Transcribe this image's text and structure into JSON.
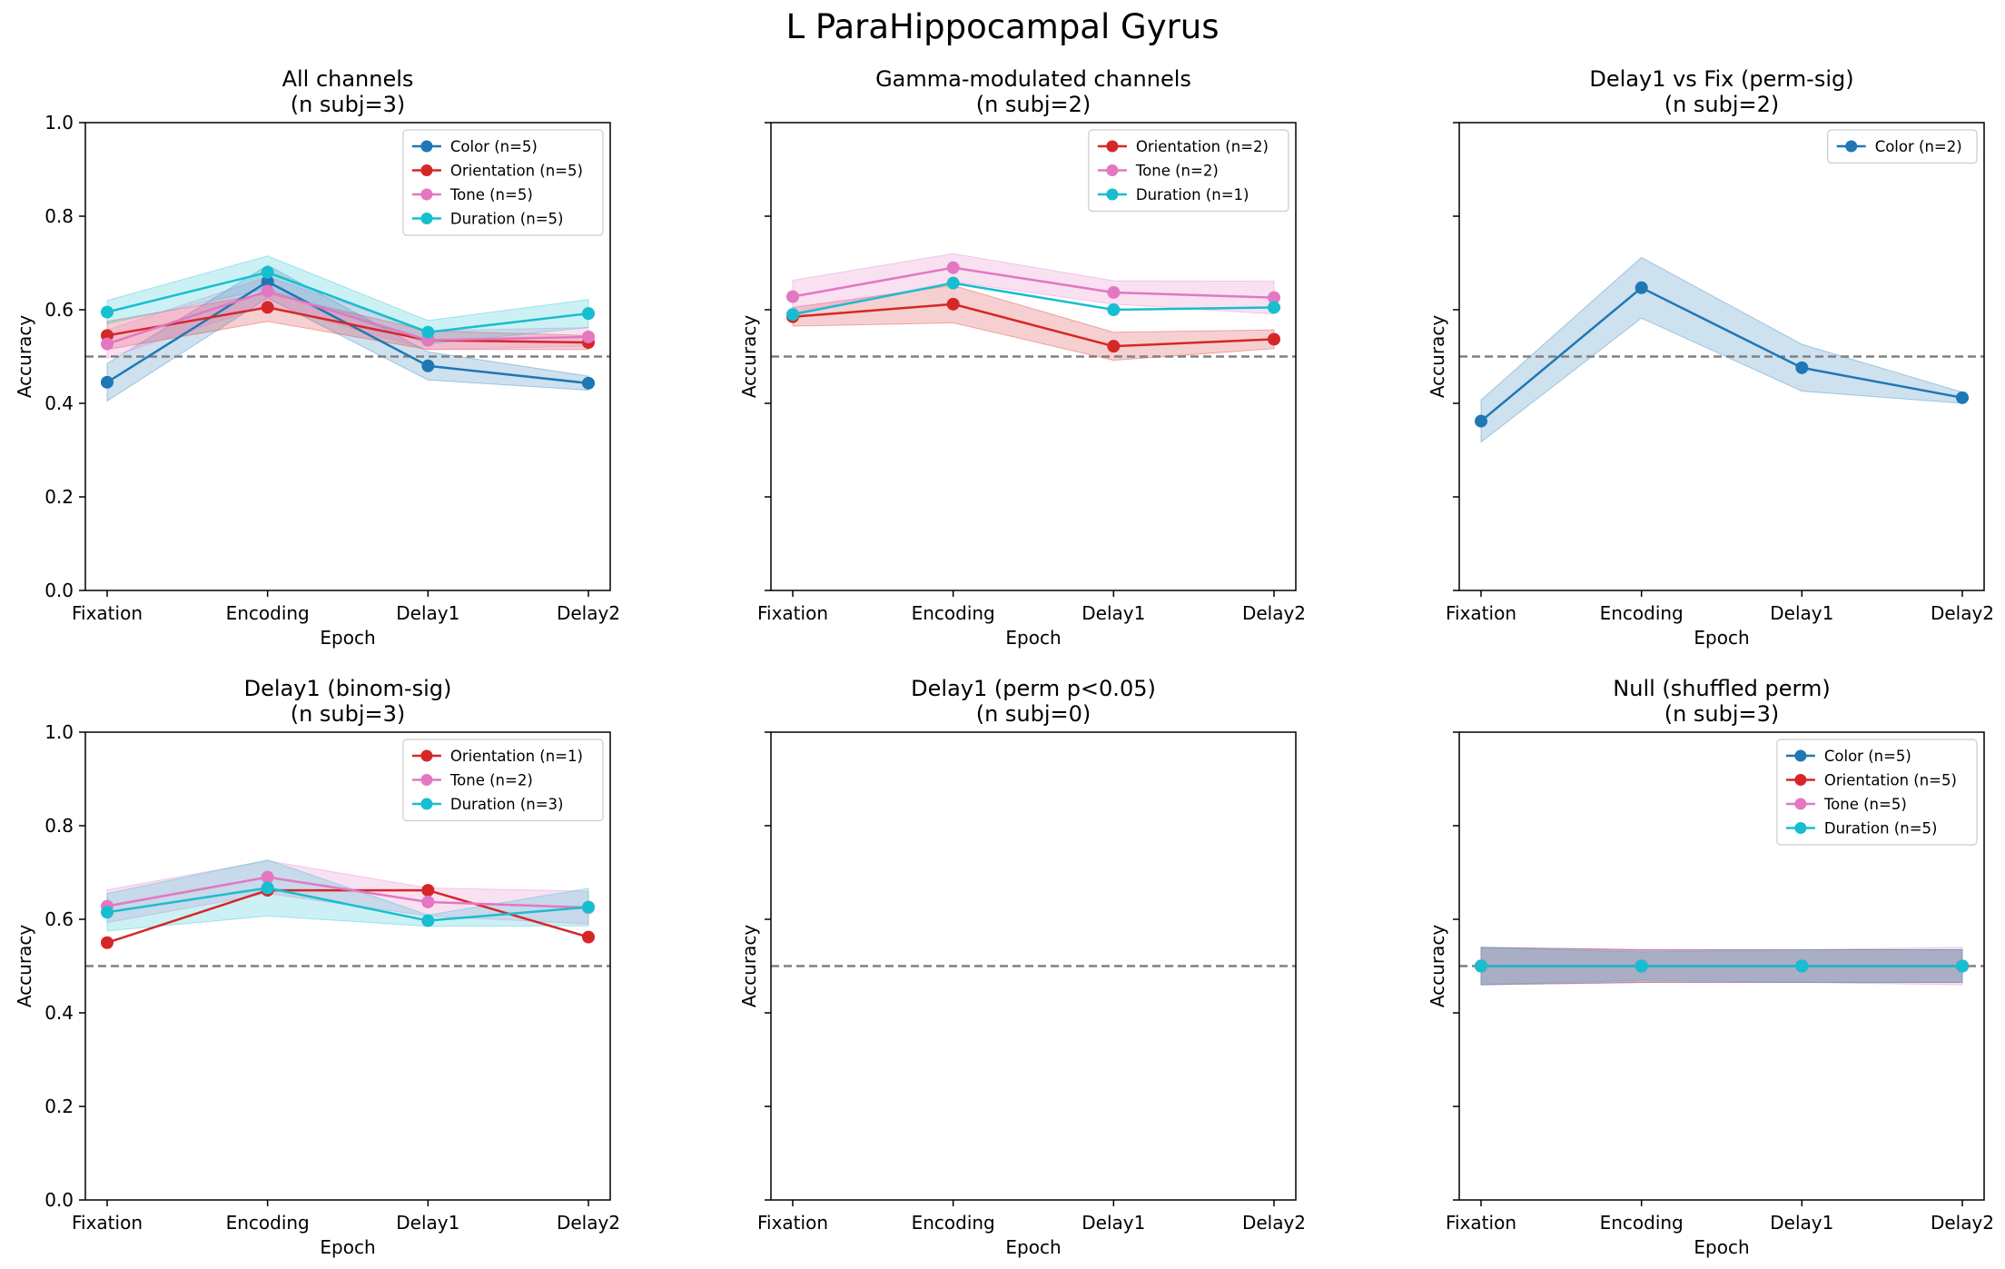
{
  "suptitle": "L ParaHippocampal Gyrus",
  "epochs": [
    "Fixation",
    "Encoding",
    "Delay1",
    "Delay2"
  ],
  "xlabel": "Epoch",
  "ylabel": "Accuracy",
  "yticks": [
    "0.0",
    "0.2",
    "0.4",
    "0.6",
    "0.8",
    "1.0"
  ],
  "colors": {
    "Color": "#1f77b4",
    "Orientation": "#d62728",
    "Tone": "#e377c2",
    "Duration": "#17becf",
    "chance": "#808080"
  },
  "chart_data": [
    {
      "type": "line",
      "title": "All channels",
      "subtitle": "(n subj=3)",
      "ylim": [
        0,
        1
      ],
      "chance": 0.5,
      "show_yticklabels": true,
      "legend": "top-right",
      "series": [
        {
          "name": "Color (n=5)",
          "feature": "Color",
          "values": [
            0.445,
            0.66,
            0.48,
            0.443
          ],
          "err": [
            0.04,
            0.035,
            0.03,
            0.015
          ]
        },
        {
          "name": "Orientation (n=5)",
          "feature": "Orientation",
          "values": [
            0.545,
            0.605,
            0.535,
            0.53
          ],
          "err": [
            0.03,
            0.03,
            0.02,
            0.015
          ]
        },
        {
          "name": "Tone (n=5)",
          "feature": "Tone",
          "values": [
            0.527,
            0.64,
            0.535,
            0.542
          ],
          "err": [
            0.03,
            0.03,
            0.02,
            0.02
          ]
        },
        {
          "name": "Duration (n=5)",
          "feature": "Duration",
          "values": [
            0.595,
            0.68,
            0.552,
            0.592
          ],
          "err": [
            0.025,
            0.035,
            0.025,
            0.03
          ]
        }
      ]
    },
    {
      "type": "line",
      "title": "Gamma-modulated channels",
      "subtitle": "(n subj=2)",
      "ylim": [
        0,
        1
      ],
      "chance": 0.5,
      "show_yticklabels": false,
      "legend": "top-right",
      "series": [
        {
          "name": "Orientation (n=2)",
          "feature": "Orientation",
          "values": [
            0.585,
            0.612,
            0.522,
            0.537
          ],
          "err": [
            0.02,
            0.04,
            0.03,
            0.02
          ]
        },
        {
          "name": "Tone (n=2)",
          "feature": "Tone",
          "values": [
            0.628,
            0.69,
            0.637,
            0.626
          ],
          "err": [
            0.035,
            0.03,
            0.025,
            0.035
          ]
        },
        {
          "name": "Duration (n=1)",
          "feature": "Duration",
          "values": [
            0.59,
            0.657,
            0.6,
            0.605
          ],
          "err": [
            0,
            0,
            0,
            0
          ]
        }
      ]
    },
    {
      "type": "line",
      "title": "Delay1 vs Fix (perm-sig)",
      "subtitle": "(n subj=2)",
      "ylim": [
        0,
        1
      ],
      "chance": 0.5,
      "show_yticklabels": false,
      "legend": "top-right",
      "series": [
        {
          "name": "Color (n=2)",
          "feature": "Color",
          "values": [
            0.362,
            0.647,
            0.476,
            0.412
          ],
          "err": [
            0.045,
            0.065,
            0.05,
            0.012
          ]
        }
      ]
    },
    {
      "type": "line",
      "title": "Delay1 (binom-sig)",
      "subtitle": "(n subj=3)",
      "ylim": [
        0,
        1
      ],
      "chance": 0.5,
      "show_yticklabels": true,
      "legend": "top-right",
      "series": [
        {
          "name": "Orientation (n=1)",
          "feature": "Orientation",
          "values": [
            0.55,
            0.662,
            0.662,
            0.562
          ],
          "err": [
            0,
            0,
            0,
            0
          ]
        },
        {
          "name": "Tone (n=2)",
          "feature": "Tone",
          "values": [
            0.628,
            0.69,
            0.637,
            0.625
          ],
          "err": [
            0.035,
            0.035,
            0.03,
            0.035
          ]
        },
        {
          "name": "Duration (n=3)",
          "feature": "Duration",
          "values": [
            0.615,
            0.667,
            0.597,
            0.626
          ],
          "err": [
            0.04,
            0.06,
            0.012,
            0.04
          ]
        }
      ]
    },
    {
      "type": "line",
      "title": "Delay1 (perm p<0.05)",
      "subtitle": "(n subj=0)",
      "ylim": [
        0,
        1
      ],
      "chance": 0.5,
      "show_yticklabels": false,
      "legend": "",
      "series": []
    },
    {
      "type": "line",
      "title": "Null (shuffled perm)",
      "subtitle": "(n subj=3)",
      "ylim": [
        0,
        1
      ],
      "chance": 0.5,
      "show_yticklabels": false,
      "legend": "top-right",
      "series": [
        {
          "name": "Color (n=5)",
          "feature": "Color",
          "values": [
            0.5,
            0.5,
            0.5,
            0.5
          ],
          "err": [
            0.04,
            0.035,
            0.035,
            0.035
          ]
        },
        {
          "name": "Orientation (n=5)",
          "feature": "Orientation",
          "values": [
            0.5,
            0.5,
            0.5,
            0.5
          ],
          "err": [
            0.04,
            0.035,
            0.035,
            0.035
          ]
        },
        {
          "name": "Tone (n=5)",
          "feature": "Tone",
          "values": [
            0.5,
            0.5,
            0.5,
            0.5
          ],
          "err": [
            0.04,
            0.035,
            0.035,
            0.04
          ]
        },
        {
          "name": "Duration (n=5)",
          "feature": "Duration",
          "values": [
            0.5,
            0.5,
            0.5,
            0.5
          ],
          "err": [
            0.04,
            0.03,
            0.035,
            0.035
          ]
        }
      ]
    }
  ]
}
